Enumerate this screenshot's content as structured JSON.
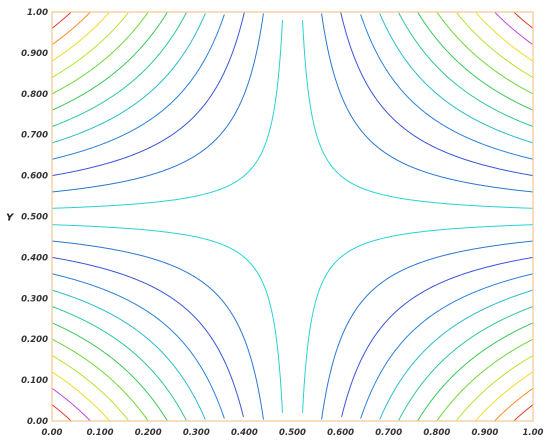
{
  "chart_data": {
    "type": "contour",
    "title": "",
    "xlabel": "",
    "ylabel": "Y",
    "xlim": [
      0,
      1
    ],
    "ylim": [
      0,
      1
    ],
    "grid": false,
    "legend": "none",
    "x_ticks": [
      "0.00",
      "0.100",
      "0.200",
      "0.300",
      "0.400",
      "0.500",
      "0.600",
      "0.700",
      "0.800",
      "0.900",
      "1.00"
    ],
    "y_ticks": [
      "0.00",
      "0.100",
      "0.200",
      "0.300",
      "0.400",
      "0.500",
      "0.600",
      "0.700",
      "0.800",
      "0.900",
      "1.00"
    ],
    "surface": "z = (x - 0.5) * (y - 0.5)",
    "contour_levels": [
      {
        "level": -0.23,
        "color": "#e03a2a"
      },
      {
        "level": -0.21,
        "color": "#ff8c2a"
      },
      {
        "level": -0.19,
        "color": "#f0dc2a"
      },
      {
        "level": -0.17,
        "color": "#b4e432"
      },
      {
        "level": -0.15,
        "color": "#6ed83a"
      },
      {
        "level": -0.13,
        "color": "#3cc85a"
      },
      {
        "level": -0.11,
        "color": "#2ec89a"
      },
      {
        "level": -0.09,
        "color": "#2abccc"
      },
      {
        "level": -0.07,
        "color": "#2a82d8"
      },
      {
        "level": -0.05,
        "color": "#3a56d8"
      },
      {
        "level": -0.03,
        "color": "#2a78d0"
      },
      {
        "level": -0.01,
        "color": "#2ad2d2"
      },
      {
        "level": 0.01,
        "color": "#2ad2d2"
      },
      {
        "level": 0.03,
        "color": "#2a78d0"
      },
      {
        "level": 0.05,
        "color": "#3a56d8"
      },
      {
        "level": 0.07,
        "color": "#2a82d8"
      },
      {
        "level": 0.09,
        "color": "#2abccc"
      },
      {
        "level": 0.11,
        "color": "#2ec89a"
      },
      {
        "level": 0.13,
        "color": "#3cc85a"
      },
      {
        "level": 0.15,
        "color": "#6ed83a"
      },
      {
        "level": 0.17,
        "color": "#b4e432"
      },
      {
        "level": 0.19,
        "color": "#f0dc2a"
      },
      {
        "level": 0.21,
        "color": "#c04ce0"
      },
      {
        "level": 0.23,
        "color": "#e03a2a"
      }
    ],
    "frame_color": "#f0c890"
  }
}
